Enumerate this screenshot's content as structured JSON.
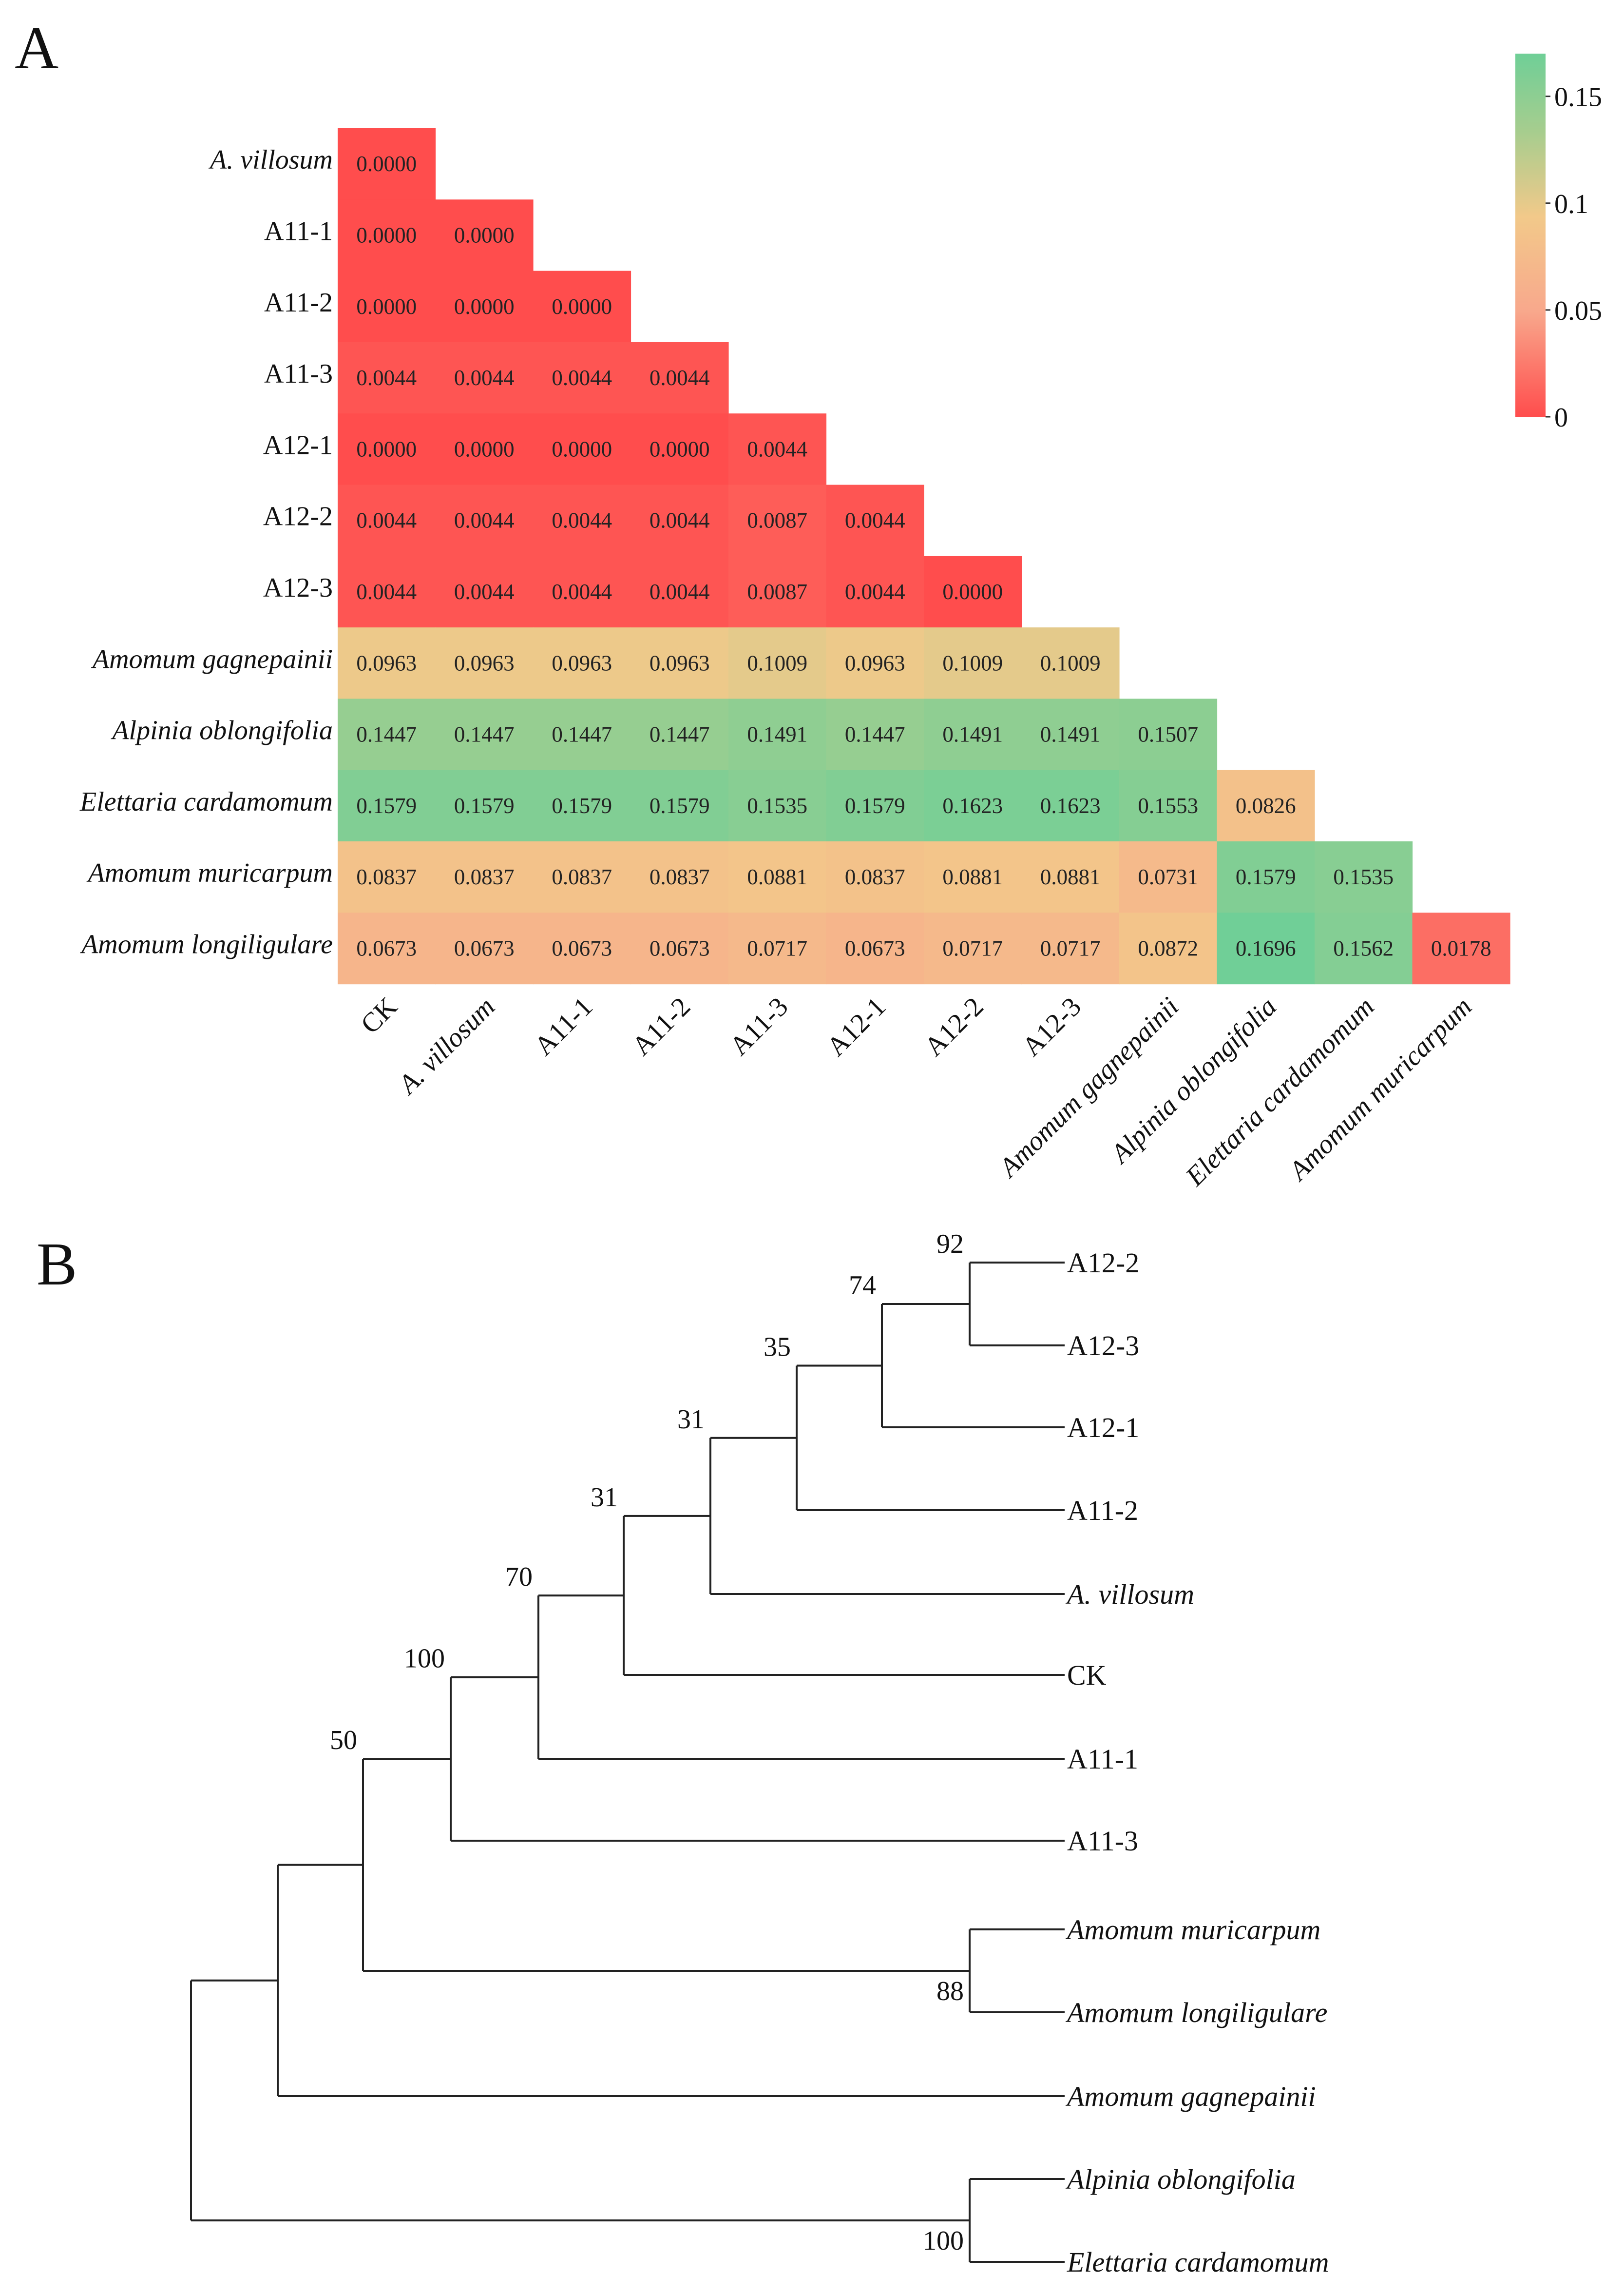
{
  "panels": {
    "a": "A",
    "b": "B"
  },
  "chart_data": [
    {
      "type": "heatmap",
      "title": "",
      "row_labels": [
        "A. villosum",
        "A11-1",
        "A11-2",
        "A11-3",
        "A12-1",
        "A12-2",
        "A12-3",
        "Amomum gagnepainii",
        "Alpinia oblongifolia",
        "Elettaria cardamomum",
        "Amomum muricarpum",
        "Amomum longiligulare"
      ],
      "col_labels": [
        "CK",
        "A. villosum",
        "A11-1",
        "A11-2",
        "A11-3",
        "A12-1",
        "A12-2",
        "A12-3",
        "Amomum gagnepainii",
        "Alpinia oblongifolia",
        "Elettaria cardamomum",
        "Amomum muricarpum"
      ],
      "italic_labels": [
        "A. villosum",
        "Amomum gagnepainii",
        "Alpinia oblongifolia",
        "Elettaria cardamomum",
        "Amomum muricarpum",
        "Amomum longiligulare"
      ],
      "values": [
        [
          "0.0000"
        ],
        [
          "0.0000",
          "0.0000"
        ],
        [
          "0.0000",
          "0.0000",
          "0.0000"
        ],
        [
          "0.0044",
          "0.0044",
          "0.0044",
          "0.0044"
        ],
        [
          "0.0000",
          "0.0000",
          "0.0000",
          "0.0000",
          "0.0044"
        ],
        [
          "0.0044",
          "0.0044",
          "0.0044",
          "0.0044",
          "0.0087",
          "0.0044"
        ],
        [
          "0.0044",
          "0.0044",
          "0.0044",
          "0.0044",
          "0.0087",
          "0.0044",
          "0.0000"
        ],
        [
          "0.0963",
          "0.0963",
          "0.0963",
          "0.0963",
          "0.1009",
          "0.0963",
          "0.1009",
          "0.1009"
        ],
        [
          "0.1447",
          "0.1447",
          "0.1447",
          "0.1447",
          "0.1491",
          "0.1447",
          "0.1491",
          "0.1491",
          "0.1507"
        ],
        [
          "0.1579",
          "0.1579",
          "0.1579",
          "0.1579",
          "0.1535",
          "0.1579",
          "0.1623",
          "0.1623",
          "0.1553",
          "0.0826"
        ],
        [
          "0.0837",
          "0.0837",
          "0.0837",
          "0.0837",
          "0.0881",
          "0.0837",
          "0.0881",
          "0.0881",
          "0.0731",
          "0.1579",
          "0.1535"
        ],
        [
          "0.0673",
          "0.0673",
          "0.0673",
          "0.0673",
          "0.0717",
          "0.0673",
          "0.0717",
          "0.0717",
          "0.0872",
          "0.1696",
          "0.1562",
          "0.0178"
        ]
      ],
      "colorbar": {
        "min": 0,
        "max": 0.17,
        "ticks": [
          0,
          0.05,
          0.1,
          0.15
        ],
        "tick_labels": [
          "0",
          "0.05",
          "0.1",
          "0.15"
        ],
        "colors": [
          "#ff4d4d",
          "#f8a88c",
          "#f2c98a",
          "#a8cd8e",
          "#6fcf97"
        ]
      }
    },
    {
      "type": "tree",
      "title": "",
      "tips": [
        "A12-2",
        "A12-3",
        "A12-1",
        "A11-2",
        "A. villosum",
        "CK",
        "A11-1",
        "A11-3",
        "Amomum muricarpum",
        "Amomum longiligulare",
        "Amomum gagnepainii",
        "Alpinia oblongifolia",
        "Elettaria cardamomum"
      ],
      "italic_tips": [
        "A. villosum",
        "Amomum muricarpum",
        "Amomum longiligulare",
        "Amomum gagnepainii",
        "Alpinia oblongifolia",
        "Elettaria cardamomum"
      ],
      "bootstrap": {
        "A12-2+A12-3": "92",
        "A12 group": "74",
        "A12+A11-2": "35",
        "+A. villosum": "31",
        "+CK": "31",
        "+A11-1": "70",
        "+A11-3": "100",
        "A. muricarpum+A. longiligulare": "88",
        "ingroup": "50",
        "Alpinia+Elettaria": "100"
      }
    }
  ]
}
